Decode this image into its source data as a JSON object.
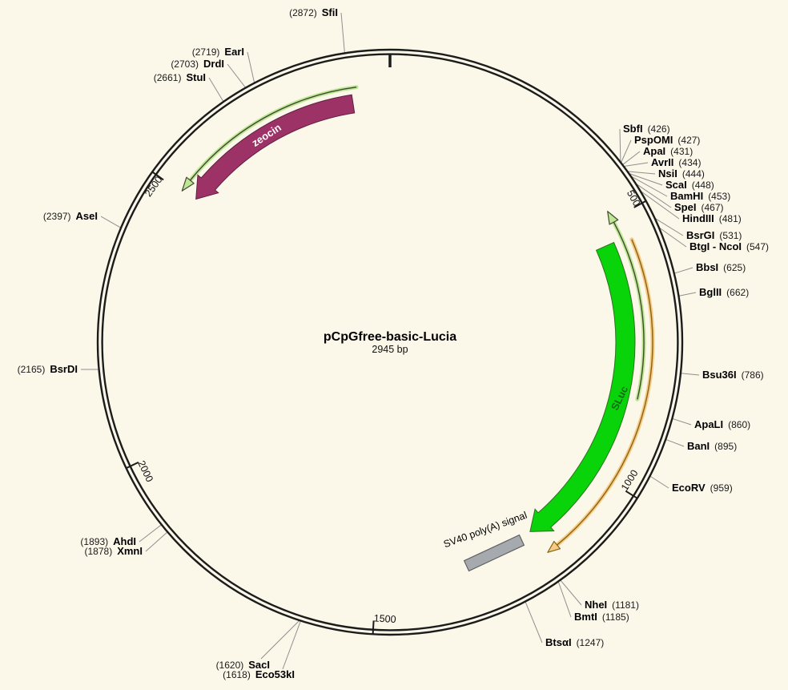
{
  "title": {
    "text": "pCpGfree-basic-Lucia",
    "length": "2945 bp"
  },
  "backbone": {
    "length_bp": 2945,
    "tick_labels": [
      "500",
      "1000",
      "1500",
      "2000",
      "2500"
    ],
    "color": "#1C1C1C"
  },
  "features": [
    {
      "label": "zeocin",
      "color": "#9C3266",
      "outline": "#5F1F41",
      "label_color": "#FFFFFF",
      "direction": "counterclockwise"
    },
    {
      "label": "SLuc",
      "color": "#09D309",
      "outline": "#2E7022",
      "label_color": "#166A16",
      "direction": "clockwise"
    },
    {
      "label": "SV40 poly(A) signal",
      "color": "#A6AAAE",
      "outline": "#606366",
      "label_color": "#000000",
      "direction": "none"
    }
  ],
  "orf_arrows": [
    {
      "name": "orf-arrow-zeocin",
      "fill": "#BDE795",
      "line": "#40492F",
      "direction": "counterclockwise"
    },
    {
      "name": "orf-arrow-sluc",
      "fill": "#BDE795",
      "line": "#40492F",
      "direction": "counterclockwise"
    },
    {
      "name": "orf-arrow-orange",
      "fill": "#F5CB83",
      "line": "#8A6317",
      "direction": "clockwise"
    }
  ],
  "restriction_sites": [
    {
      "name": "SbfI",
      "site": 426,
      "side": "right"
    },
    {
      "name": "PspOMI",
      "site": 427,
      "side": "right"
    },
    {
      "name": "ApaI",
      "site": 431,
      "side": "right"
    },
    {
      "name": "AvrII",
      "site": 434,
      "side": "right"
    },
    {
      "name": "NsiI",
      "site": 444,
      "side": "right"
    },
    {
      "name": "ScaI",
      "site": 448,
      "side": "right"
    },
    {
      "name": "BamHI",
      "site": 453,
      "side": "right"
    },
    {
      "name": "SpeI",
      "site": 467,
      "side": "right"
    },
    {
      "name": "HindIII",
      "site": 481,
      "side": "right"
    },
    {
      "name": "BsrGI",
      "site": 531,
      "side": "right"
    },
    {
      "name": "BtgI - NcoI",
      "site": 547,
      "side": "right"
    },
    {
      "name": "BbsI",
      "site": 625,
      "side": "right"
    },
    {
      "name": "BglII",
      "site": 662,
      "side": "right"
    },
    {
      "name": "Bsu36I",
      "site": 786,
      "side": "right"
    },
    {
      "name": "ApaLI",
      "site": 860,
      "side": "right"
    },
    {
      "name": "BanI",
      "site": 895,
      "side": "right"
    },
    {
      "name": "EcoRV",
      "site": 959,
      "side": "right"
    },
    {
      "name": "NheI",
      "site": 1181,
      "side": "right"
    },
    {
      "name": "BmtI",
      "site": 1185,
      "side": "right"
    },
    {
      "name": "BtsαI",
      "site": 1247,
      "side": "right"
    },
    {
      "name": "Eco53kI",
      "site": 1618,
      "side": "left"
    },
    {
      "name": "SacI",
      "site": 1620,
      "side": "left"
    },
    {
      "name": "XmnI",
      "site": 1878,
      "side": "left"
    },
    {
      "name": "AhdI",
      "site": 1893,
      "side": "left"
    },
    {
      "name": "BsrDI",
      "site": 2165,
      "side": "left"
    },
    {
      "name": "AseI",
      "site": 2397,
      "side": "left"
    },
    {
      "name": "StuI",
      "site": 2661,
      "side": "left"
    },
    {
      "name": "DrdI",
      "site": 2703,
      "side": "left"
    },
    {
      "name": "EarI",
      "site": 2719,
      "side": "left"
    },
    {
      "name": "SfiI",
      "site": 2872,
      "side": "left"
    }
  ],
  "colors": {
    "background": "#FBF7E9",
    "leader_line": "#8F8F8F",
    "tick": "#1C1C1C"
  }
}
